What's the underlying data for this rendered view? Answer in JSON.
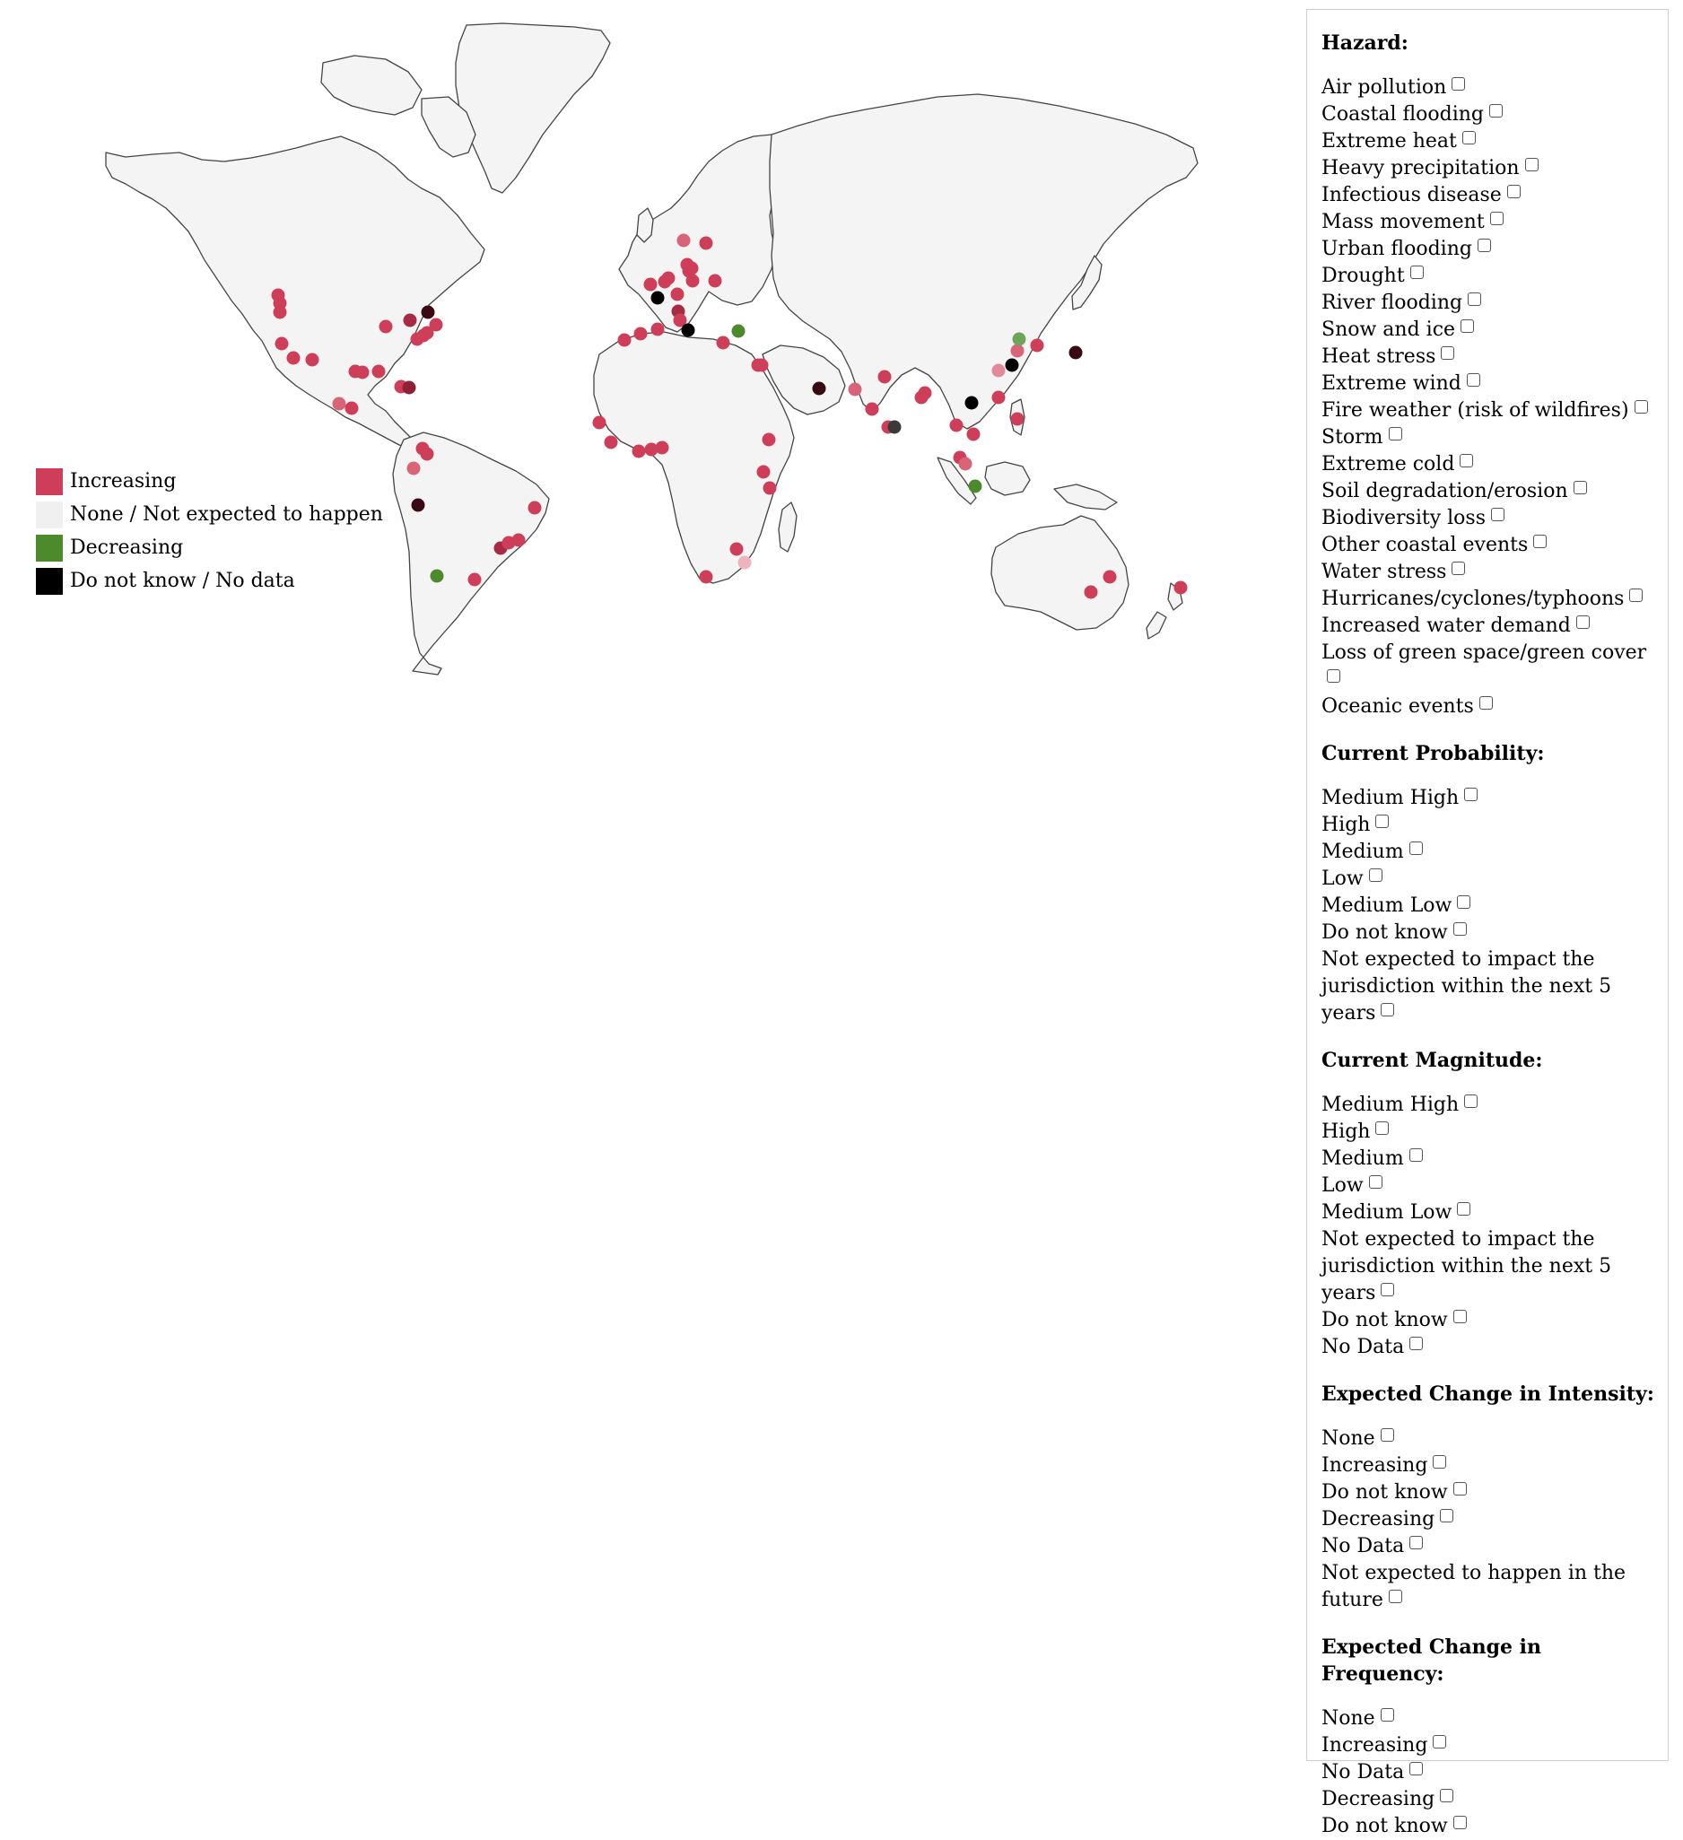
{
  "legend": {
    "items": [
      {
        "label": "Increasing",
        "color": "#cf3e58"
      },
      {
        "label": "None / Not expected to happen",
        "color": "#f0f0f0"
      },
      {
        "label": "Decreasing",
        "color": "#4c8a2c"
      },
      {
        "label": "Do not know / No data",
        "color": "#000000"
      }
    ]
  },
  "map": {
    "land_color": "#f4f4f4",
    "border_color": "#444444"
  },
  "filters": {
    "hazard": {
      "title": "Hazard:",
      "options": [
        "Air pollution",
        "Coastal flooding",
        "Extreme heat",
        "Heavy precipitation",
        "Infectious disease",
        "Mass movement",
        "Urban flooding",
        "Drought",
        "River flooding",
        "Snow and ice",
        "Heat stress",
        "Extreme wind",
        "Fire weather (risk of wildfires)",
        "Storm",
        "Extreme cold",
        "Soil degradation/erosion",
        "Biodiversity loss",
        "Other coastal events",
        "Water stress",
        "Hurricanes/cyclones/typhoons",
        "Increased water demand",
        "Loss of green space/green cover",
        "Oceanic events"
      ]
    },
    "current_probability": {
      "title": "Current Probability:",
      "options": [
        "Medium High",
        "High",
        "Medium",
        "Low",
        "Medium Low",
        "Do not know",
        "Not expected to impact the jurisdiction within the next 5 years"
      ]
    },
    "current_magnitude": {
      "title": "Current Magnitude:",
      "options": [
        "Medium High",
        "High",
        "Medium",
        "Low",
        "Medium Low",
        "Not expected to impact the jurisdiction within the next 5 years",
        "Do not know",
        "No Data"
      ]
    },
    "intensity_change": {
      "title": "Expected Change in Intensity:",
      "options": [
        "None",
        "Increasing",
        "Do not know",
        "Decreasing",
        "No Data",
        "Not expected to happen in the future"
      ]
    },
    "frequency_change": {
      "title": "Expected Change in Frequency:",
      "options": [
        "None",
        "Increasing",
        "No Data",
        "Decreasing",
        "Do not know"
      ]
    }
  }
}
